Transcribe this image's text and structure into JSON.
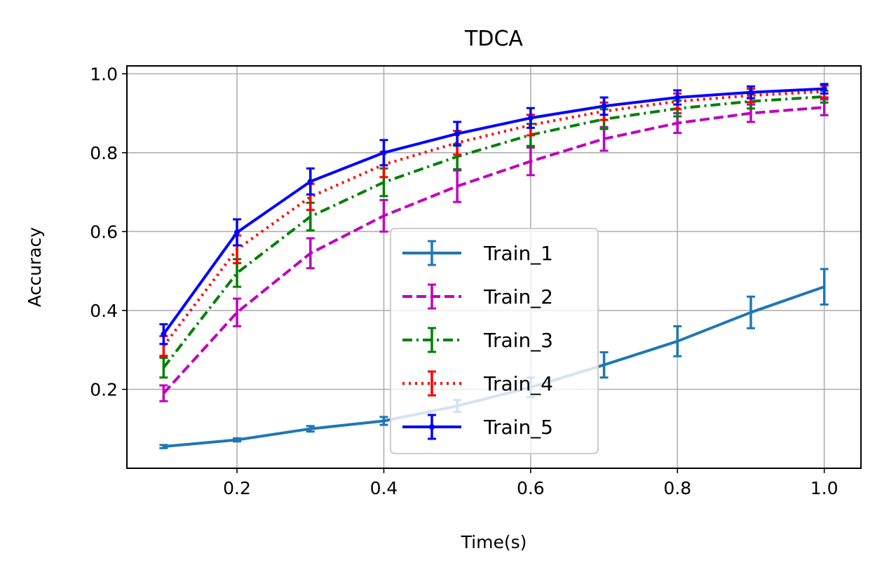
{
  "chart_data": {
    "type": "line",
    "title": "TDCA",
    "xlabel": "Time(s)",
    "ylabel": "Accuracy",
    "xlim": [
      0.05,
      1.05
    ],
    "ylim": [
      0.0,
      1.02
    ],
    "xticks": [
      "0.2",
      "0.4",
      "0.6",
      "0.8",
      "1.0"
    ],
    "xtick_values": [
      0.2,
      0.4,
      0.6,
      0.8,
      1.0
    ],
    "yticks": [
      "0.2",
      "0.4",
      "0.6",
      "0.8",
      "1.0"
    ],
    "ytick_values": [
      0.2,
      0.4,
      0.6,
      0.8,
      1.0
    ],
    "grid": true,
    "legend_position": "center",
    "x": [
      0.1,
      0.2,
      0.3,
      0.4,
      0.5,
      0.6,
      0.7,
      0.8,
      0.9,
      1.0
    ],
    "series": [
      {
        "name": "Train_1",
        "color": "#1f77b4",
        "linestyle": "solid",
        "marker": "none",
        "values": [
          0.055,
          0.072,
          0.1,
          0.12,
          0.158,
          0.205,
          0.262,
          0.322,
          0.395,
          0.46
        ],
        "errors": [
          0.004,
          0.004,
          0.007,
          0.01,
          0.015,
          0.025,
          0.032,
          0.038,
          0.04,
          0.045
        ]
      },
      {
        "name": "Train_2",
        "color": "#bf00bf",
        "linestyle": "dashed",
        "marker": "none",
        "values": [
          0.19,
          0.395,
          0.545,
          0.64,
          0.715,
          0.778,
          0.835,
          0.875,
          0.9,
          0.915
        ],
        "errors": [
          0.02,
          0.035,
          0.038,
          0.04,
          0.04,
          0.035,
          0.03,
          0.025,
          0.022,
          0.02
        ]
      },
      {
        "name": "Train_3",
        "color": "#008000",
        "linestyle": "dashdot",
        "marker": "none",
        "values": [
          0.255,
          0.495,
          0.638,
          0.725,
          0.79,
          0.845,
          0.885,
          0.912,
          0.93,
          0.942
        ],
        "errors": [
          0.025,
          0.035,
          0.035,
          0.035,
          0.032,
          0.028,
          0.025,
          0.02,
          0.018,
          0.015
        ]
      },
      {
        "name": "Train_4",
        "color": "#ff0000",
        "linestyle": "dotted",
        "marker": "none",
        "values": [
          0.31,
          0.555,
          0.688,
          0.77,
          0.825,
          0.87,
          0.905,
          0.93,
          0.945,
          0.955
        ],
        "errors": [
          0.025,
          0.035,
          0.033,
          0.032,
          0.03,
          0.026,
          0.022,
          0.02,
          0.017,
          0.015
        ]
      },
      {
        "name": "Train_5",
        "color": "#0000ff",
        "linestyle": "solid",
        "marker": "point",
        "values": [
          0.34,
          0.598,
          0.727,
          0.8,
          0.848,
          0.888,
          0.918,
          0.94,
          0.953,
          0.962
        ],
        "errors": [
          0.025,
          0.033,
          0.033,
          0.032,
          0.03,
          0.025,
          0.022,
          0.018,
          0.015,
          0.012
        ]
      }
    ]
  }
}
